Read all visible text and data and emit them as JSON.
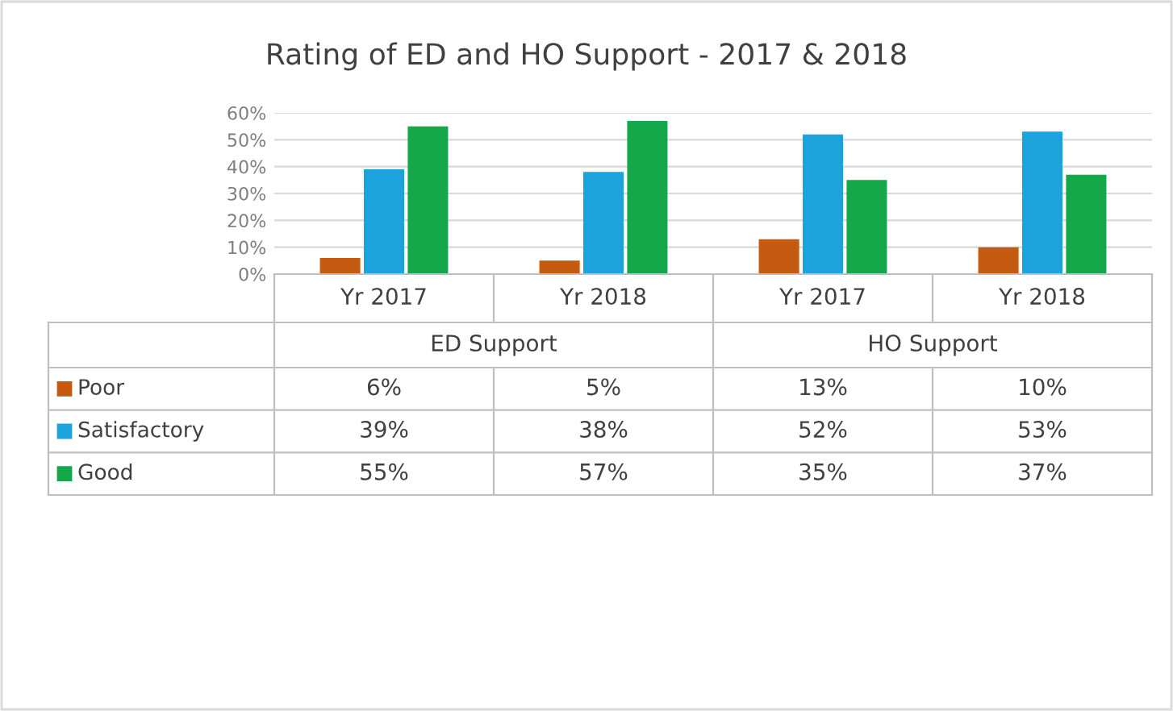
{
  "chart_data": {
    "type": "bar",
    "title": "Rating of ED and HO Support - 2017 & 2018",
    "categories": [
      "Yr 2017",
      "Yr 2018",
      "Yr 2017",
      "Yr 2018"
    ],
    "annotations": [
      "ED Support",
      "HO Support"
    ],
    "series": [
      {
        "name": "Poor",
        "color": "#c55a11",
        "values": [
          6,
          5,
          13,
          10
        ],
        "value_labels": [
          "6%",
          "5%",
          "13%",
          "10%"
        ]
      },
      {
        "name": "Satisfactory",
        "color": "#1ca3dc",
        "values": [
          39,
          38,
          52,
          53
        ],
        "value_labels": [
          "39%",
          "38%",
          "52%",
          "53%"
        ]
      },
      {
        "name": "Good",
        "color": "#14a84a",
        "values": [
          55,
          57,
          35,
          37
        ],
        "value_labels": [
          "55%",
          "57%",
          "35%",
          "37%"
        ]
      }
    ],
    "ylim": [
      0,
      60
    ],
    "yticks": [
      {
        "value": 0,
        "label": "0%"
      },
      {
        "value": 10,
        "label": "10%"
      },
      {
        "value": 20,
        "label": "20%"
      },
      {
        "value": 30,
        "label": "30%"
      },
      {
        "value": 40,
        "label": "40%"
      },
      {
        "value": 50,
        "label": "50%"
      },
      {
        "value": 60,
        "label": "60%"
      }
    ],
    "grid": "y",
    "legend": "bottom left"
  }
}
